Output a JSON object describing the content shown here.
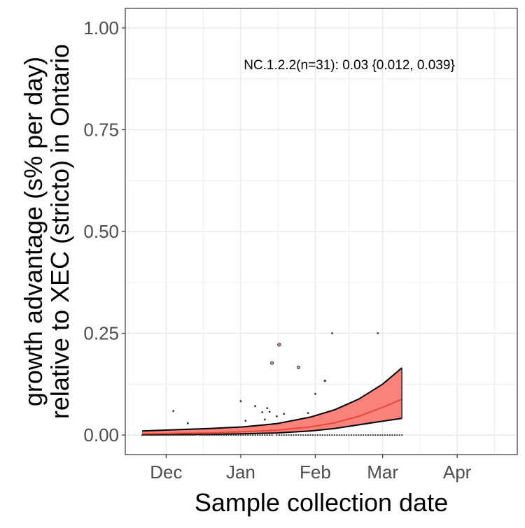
{
  "chart_data": {
    "type": "scatter",
    "xlabel": "Sample collection date",
    "ylabel_lines": [
      "growth advantage (s% per day)",
      "relative to XEC (stricto) in Ontario"
    ],
    "annotation": "NC.1.2.2(n=31): 0.03 {0.012, 0.039}",
    "x_domain": [
      "2024-11-14",
      "2025-04-26"
    ],
    "ylim": [
      -0.048,
      1.048
    ],
    "x_ticks": [
      {
        "date": "2024-12-01",
        "label": "Dec"
      },
      {
        "date": "2025-01-01",
        "label": "Jan"
      },
      {
        "date": "2025-02-01",
        "label": "Feb"
      },
      {
        "date": "2025-03-01",
        "label": "Mar"
      },
      {
        "date": "2025-04-01",
        "label": "Apr"
      }
    ],
    "y_ticks": [
      {
        "value": 0,
        "label": "0.00"
      },
      {
        "value": 0.25,
        "label": "0.25"
      },
      {
        "value": 0.5,
        "label": "0.50"
      },
      {
        "value": 0.75,
        "label": "0.75"
      },
      {
        "value": 1.0,
        "label": "1.00"
      }
    ],
    "grid": true,
    "legend": "none",
    "colors": {
      "ribbon": "#f8766d",
      "ribbon_opacity": 0.9,
      "fit_line": "#e8483a",
      "bound_line": "#000000",
      "points": "#333333",
      "panel_border": "#333333",
      "grid": "#ebebeb"
    },
    "fit": {
      "dates": [
        "2024-11-21",
        "2024-12-05",
        "2024-12-19",
        "2025-01-02",
        "2025-01-16",
        "2025-01-30",
        "2025-02-09",
        "2025-02-19",
        "2025-03-01",
        "2025-03-09"
      ],
      "mid": [
        0.003,
        0.004,
        0.005,
        0.008,
        0.012,
        0.02,
        0.03,
        0.046,
        0.068,
        0.088
      ],
      "lower": [
        0.0005,
        0.001,
        0.0015,
        0.003,
        0.005,
        0.01,
        0.016,
        0.025,
        0.034,
        0.041
      ],
      "upper": [
        0.01,
        0.013,
        0.016,
        0.02,
        0.028,
        0.044,
        0.062,
        0.088,
        0.125,
        0.165
      ]
    },
    "points": [
      {
        "date": "2024-12-04",
        "value": 0.059,
        "size": 1.4
      },
      {
        "date": "2024-12-10",
        "value": 0.029,
        "size": 1.4
      },
      {
        "date": "2025-01-01",
        "value": 0.083,
        "size": 1.4
      },
      {
        "date": "2025-01-03",
        "value": 0.035,
        "size": 1.4
      },
      {
        "date": "2025-01-07",
        "value": 0.071,
        "size": 1.4
      },
      {
        "date": "2025-01-10",
        "value": 0.056,
        "size": 1.4
      },
      {
        "date": "2025-01-11",
        "value": 0.038,
        "size": 1.4
      },
      {
        "date": "2025-01-12",
        "value": 0.066,
        "size": 1.4
      },
      {
        "date": "2025-01-13",
        "value": 0.057,
        "size": 1.4
      },
      {
        "date": "2025-01-14",
        "value": 0.177,
        "size": 2.2
      },
      {
        "date": "2025-01-16",
        "value": 0.046,
        "size": 1.4
      },
      {
        "date": "2025-01-17",
        "value": 0.222,
        "size": 2.4
      },
      {
        "date": "2025-01-19",
        "value": 0.052,
        "size": 1.4
      },
      {
        "date": "2025-01-25",
        "value": 0.166,
        "size": 2.2
      },
      {
        "date": "2025-01-29",
        "value": 0.054,
        "size": 1.4
      },
      {
        "date": "2025-02-01",
        "value": 0.101,
        "size": 1.4
      },
      {
        "date": "2025-02-05",
        "value": 0.133,
        "size": 1.6
      },
      {
        "date": "2025-02-08",
        "value": 0.25,
        "size": 1.4
      },
      {
        "date": "2025-02-27",
        "value": 0.25,
        "size": 1.4
      }
    ],
    "zero_points": {
      "start": "2024-11-21",
      "end": "2025-03-09",
      "gaps": [
        "2024-12-14",
        "2025-01-15"
      ]
    }
  }
}
